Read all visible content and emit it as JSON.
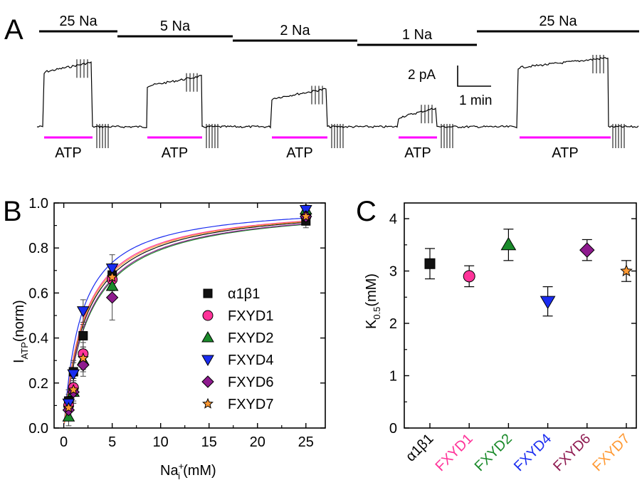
{
  "panels": {
    "A": "A",
    "B": "B",
    "C": "C"
  },
  "panel_a": {
    "segments": [
      "25 Na",
      "5 Na",
      "2 Na",
      "1 Na",
      "25 Na"
    ],
    "atp_label": "ATP",
    "scale_current": "2 pA",
    "scale_time": "1 min",
    "trace_color": "#000000",
    "atp_bar_color": "#ff00ff",
    "steady_levels": [
      {
        "segment": "25 Na",
        "rel_current": 1.0
      },
      {
        "segment": "5 Na",
        "rel_current": 0.78
      },
      {
        "segment": "2 Na",
        "rel_current": 0.58
      },
      {
        "segment": "1 Na",
        "rel_current": 0.28
      },
      {
        "segment": "25 Na",
        "rel_current": 1.07
      }
    ]
  },
  "chart_data": [
    {
      "type": "scatter",
      "panel": "B",
      "xlabel": "Na",
      "xlabel_sup": "+",
      "xlabel_sub": "i",
      "xlabel_unit": "(mM)",
      "ylabel": "I",
      "ylabel_sub": "ATP",
      "ylabel_unit": "(norm)",
      "xlim": [
        -1,
        27
      ],
      "ylim": [
        0,
        1.0
      ],
      "xticks": [
        "0",
        "5",
        "10",
        "15",
        "20",
        "25"
      ],
      "yticks": [
        "0.0",
        "0.2",
        "0.4",
        "0.6",
        "0.8",
        "1.0"
      ],
      "grid": false,
      "legend_position": "center-right",
      "x": [
        0.5,
        1,
        2,
        5,
        25
      ],
      "series": [
        {
          "name": "α1β1",
          "marker": "square",
          "color": "#111111",
          "values": [
            0.12,
            0.25,
            0.41,
            0.68,
            0.92
          ],
          "errors": [
            0.05,
            0.05,
            0.05,
            0.05,
            0.03
          ],
          "k05": 3.14
        },
        {
          "name": "FXYD1",
          "marker": "circle",
          "color": "#ff3399",
          "values": [
            0.1,
            0.18,
            0.33,
            0.66,
            0.94
          ],
          "errors": [
            0.04,
            0.04,
            0.05,
            0.05,
            0.03
          ],
          "k05": 2.9
        },
        {
          "name": "FXYD2",
          "marker": "triangle-up",
          "color": "#1a8a2a",
          "values": [
            0.05,
            0.16,
            0.3,
            0.63,
            0.97
          ],
          "errors": [
            0.04,
            0.05,
            0.05,
            0.05,
            0.03
          ],
          "k05": 3.5
        },
        {
          "name": "FXYD4",
          "marker": "triangle-down",
          "color": "#1a2cf0",
          "values": [
            0.11,
            0.24,
            0.52,
            0.71,
            0.97
          ],
          "errors": [
            0.04,
            0.05,
            0.05,
            0.06,
            0.02
          ],
          "k05": 2.4
        },
        {
          "name": "FXYD6",
          "marker": "diamond",
          "color": "#8e1a8e",
          "values": [
            0.08,
            0.16,
            0.28,
            0.58,
            0.94
          ],
          "errors": [
            0.04,
            0.05,
            0.05,
            0.1,
            0.03
          ],
          "k05": 3.4
        },
        {
          "name": "FXYD7",
          "marker": "star",
          "color": "#ff9933",
          "values": [
            0.09,
            0.17,
            0.31,
            0.67,
            0.94
          ],
          "errors": [
            0.04,
            0.05,
            0.05,
            0.05,
            0.03
          ],
          "k05": 3.0
        }
      ]
    },
    {
      "type": "scatter",
      "panel": "C",
      "ylabel": "K",
      "ylabel_sub": "0.5",
      "ylabel_unit": "(mM)",
      "ylim": [
        0,
        4.3
      ],
      "yticks": [
        "0",
        "1",
        "2",
        "3",
        "4"
      ],
      "grid": false,
      "categories": [
        "α1β1",
        "FXYD1",
        "FXYD2",
        "FXYD4",
        "FXYD6",
        "FXYD7"
      ],
      "category_colors": [
        "#000000",
        "#ff3399",
        "#1a8a2a",
        "#1a2cf0",
        "#8e1a50",
        "#ff9933"
      ],
      "values": [
        3.14,
        2.9,
        3.5,
        2.42,
        3.4,
        3.0
      ],
      "errors": [
        0.29,
        0.2,
        0.3,
        0.28,
        0.2,
        0.2
      ]
    }
  ]
}
